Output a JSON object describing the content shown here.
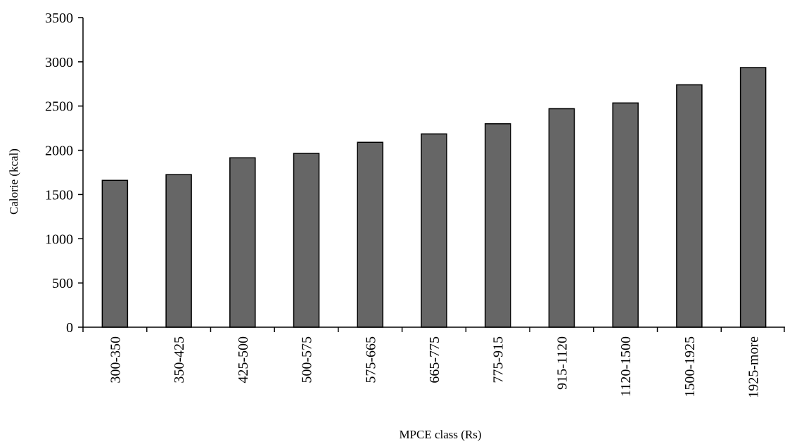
{
  "chart_data": {
    "type": "bar",
    "title": "",
    "xlabel": "MPCE class (Rs)",
    "ylabel": "Calorie (kcal)",
    "categories": [
      "300-350",
      "350-425",
      "425-500",
      "500-575",
      "575-665",
      "665-775",
      "775-915",
      "915-1120",
      "1120-1500",
      "1500-1925",
      "1925-more"
    ],
    "values": [
      1660,
      1725,
      1915,
      1965,
      2090,
      2185,
      2300,
      2470,
      2535,
      2740,
      2935
    ],
    "ylim": [
      0,
      3500
    ],
    "yticks": [
      0,
      500,
      1000,
      1500,
      2000,
      2500,
      3000,
      3500
    ],
    "grid": false,
    "legend": "none",
    "colors": {
      "bar": "#666666",
      "bar_outline": "#000000",
      "axis": "#000000"
    }
  }
}
